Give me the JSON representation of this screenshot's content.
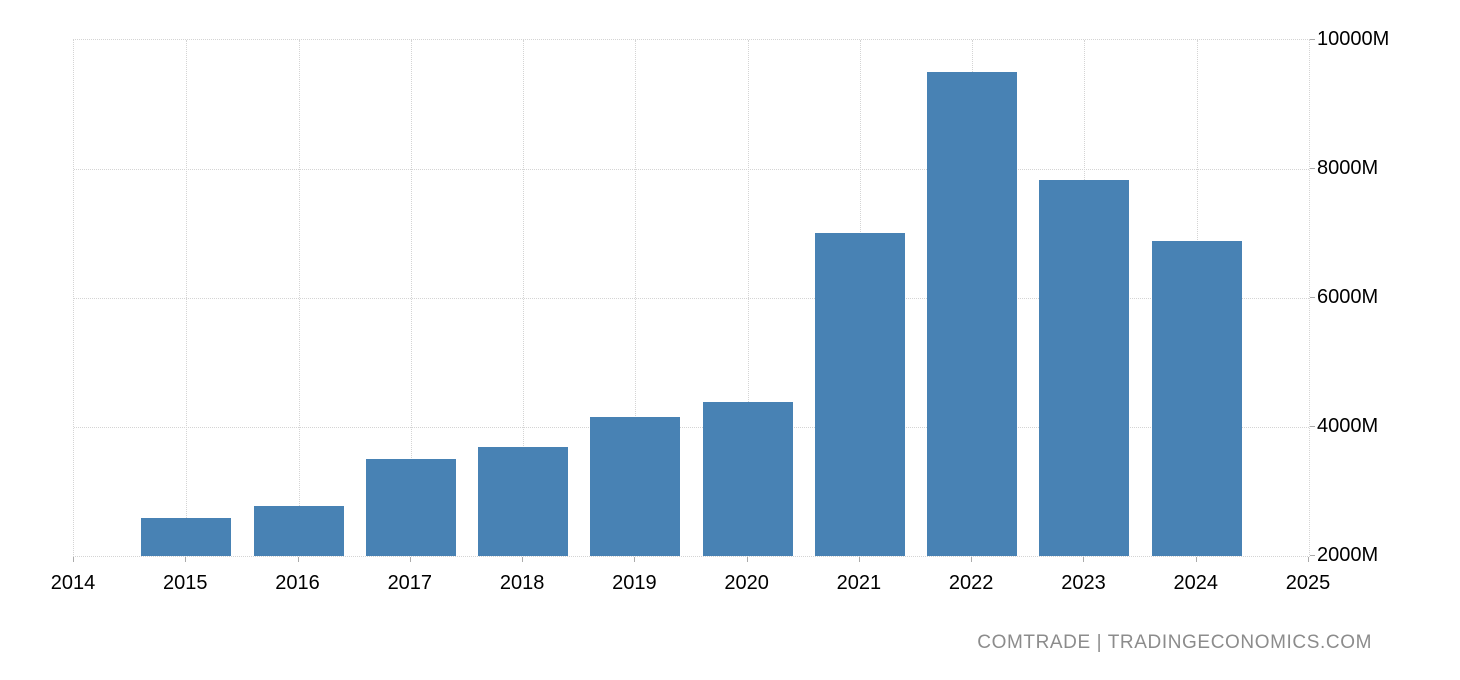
{
  "watermark": {
    "text": "COMTRADE | TRADINGECONOMICS.COM"
  },
  "colors": {
    "bar": "#4882b4",
    "grid": "#d4d4d4",
    "tick": "#ababab",
    "axis_text": "#000000",
    "watermark_text": "#8c8c8c",
    "background": "#ffffff"
  },
  "chart_data": {
    "type": "bar",
    "title": "",
    "xlabel": "",
    "ylabel": "",
    "unit": "M",
    "categories": [
      "2015",
      "2016",
      "2017",
      "2018",
      "2019",
      "2020",
      "2021",
      "2022",
      "2023",
      "2024"
    ],
    "values": [
      2590,
      2780,
      3500,
      3690,
      4160,
      4390,
      7010,
      9510,
      7830,
      6890
    ],
    "x_ticks": [
      "2014",
      "2015",
      "2016",
      "2017",
      "2018",
      "2019",
      "2020",
      "2021",
      "2022",
      "2023",
      "2024",
      "2025"
    ],
    "y_ticks": [
      {
        "value": 10000,
        "label": "10000M"
      },
      {
        "value": 8000,
        "label": "8000M"
      },
      {
        "value": 6000,
        "label": "6000M"
      },
      {
        "value": 4000,
        "label": "4000M"
      },
      {
        "value": 2000,
        "label": "2000M"
      }
    ],
    "xlim": [
      2014,
      2025
    ],
    "ylim": [
      2000,
      10000
    ],
    "grid": true,
    "legend": "none"
  }
}
